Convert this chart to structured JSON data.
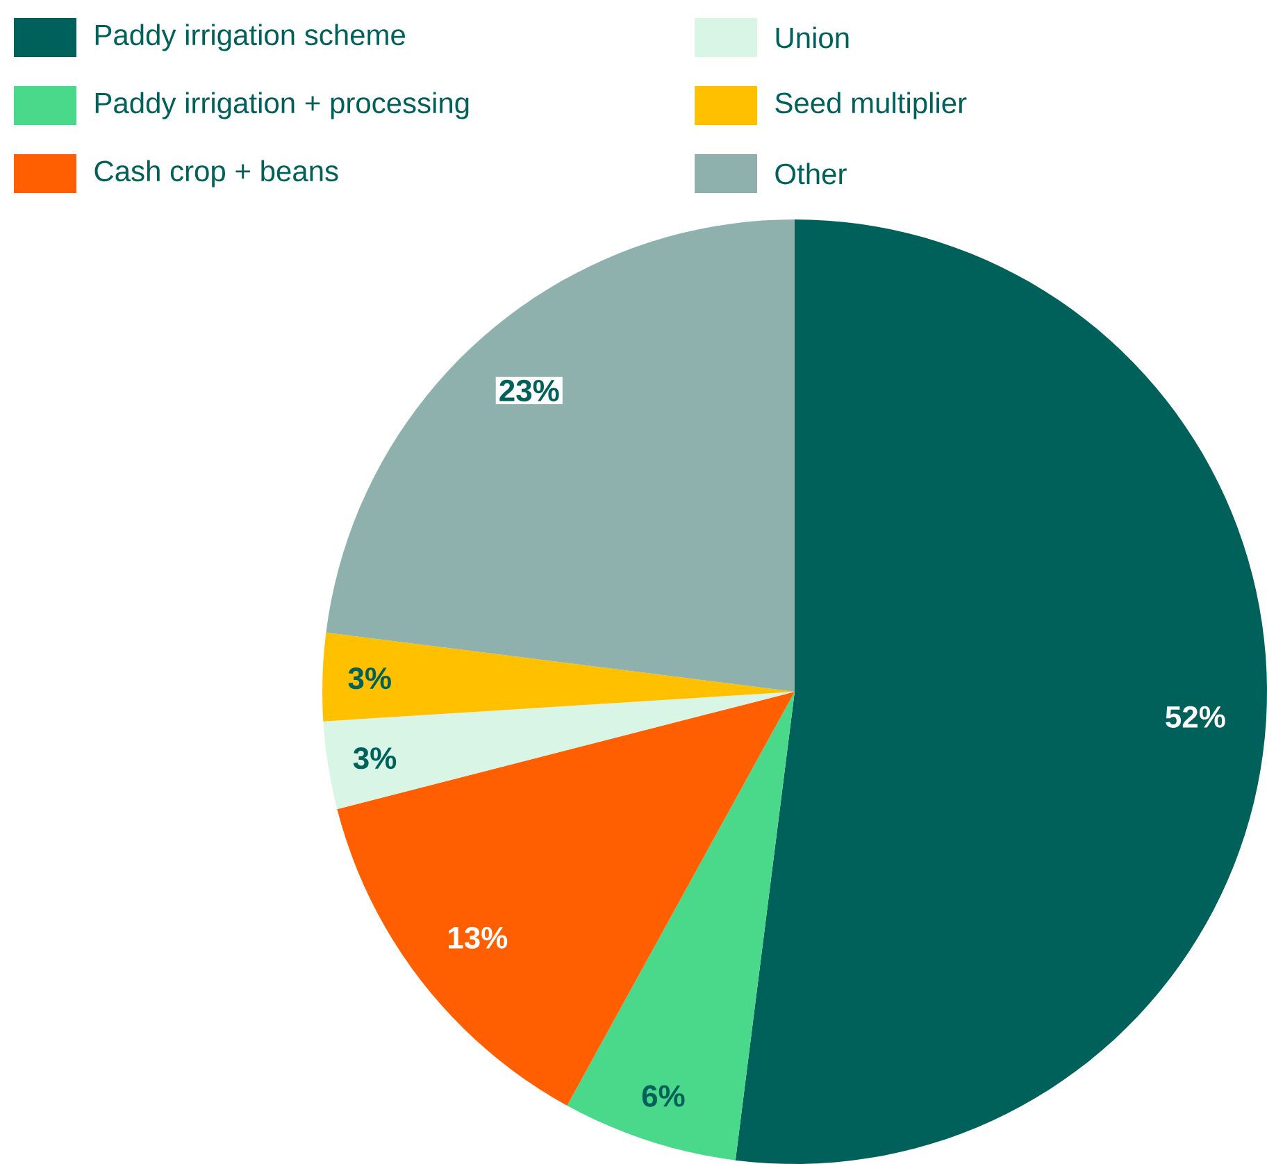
{
  "chart_data": {
    "type": "pie",
    "categories": [
      "Paddy irrigation scheme",
      "Paddy irrigation + processing",
      "Cash crop + beans",
      "Union",
      "Seed multiplier",
      "Other"
    ],
    "values": [
      52,
      6,
      13,
      3,
      3,
      23
    ],
    "colors": [
      "#00605a",
      "#4ad98a",
      "#ff5f00",
      "#d9f5e6",
      "#ffc000",
      "#8fb1ae"
    ],
    "value_labels": [
      "52%",
      "6%",
      "13%",
      "3%",
      "3%",
      "23%"
    ],
    "legend": "top"
  }
}
